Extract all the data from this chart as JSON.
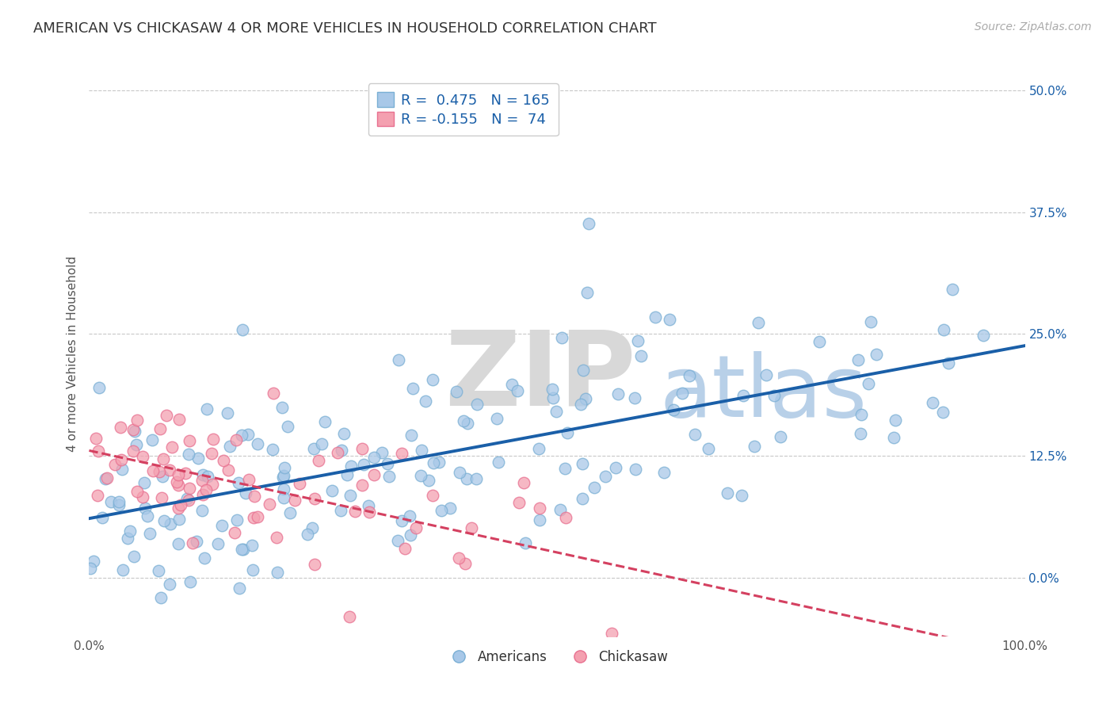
{
  "title": "AMERICAN VS CHICKASAW 4 OR MORE VEHICLES IN HOUSEHOLD CORRELATION CHART",
  "source": "Source: ZipAtlas.com",
  "ylabel_label": "4 or more Vehicles in Household",
  "watermark_zip": "ZIP",
  "watermark_atlas": "atlas",
  "legend_blue_r": "R =  0.475",
  "legend_blue_n": "N = 165",
  "legend_pink_r": "R = -0.155",
  "legend_pink_n": "N =  74",
  "blue_color": "#a8c8e8",
  "blue_edge_color": "#7aafd4",
  "pink_color": "#f4a0b0",
  "pink_edge_color": "#e87090",
  "trend_blue_color": "#1a5fa8",
  "trend_pink_color": "#d44060",
  "xlim": [
    0,
    1
  ],
  "ylim": [
    -0.06,
    0.52
  ],
  "ytick_vals": [
    0.0,
    0.125,
    0.25,
    0.375,
    0.5
  ],
  "ytick_labels": [
    "0.0%",
    "12.5%",
    "25.0%",
    "37.5%",
    "50.0%"
  ],
  "title_fontsize": 13,
  "source_fontsize": 10,
  "legend_fontsize": 12,
  "axis_label_fontsize": 11,
  "tick_fontsize": 11,
  "background_color": "#ffffff",
  "grid_color": "#c8c8c8",
  "watermark_zip_color": "#d8d8d8",
  "watermark_atlas_color": "#b8d0e8"
}
